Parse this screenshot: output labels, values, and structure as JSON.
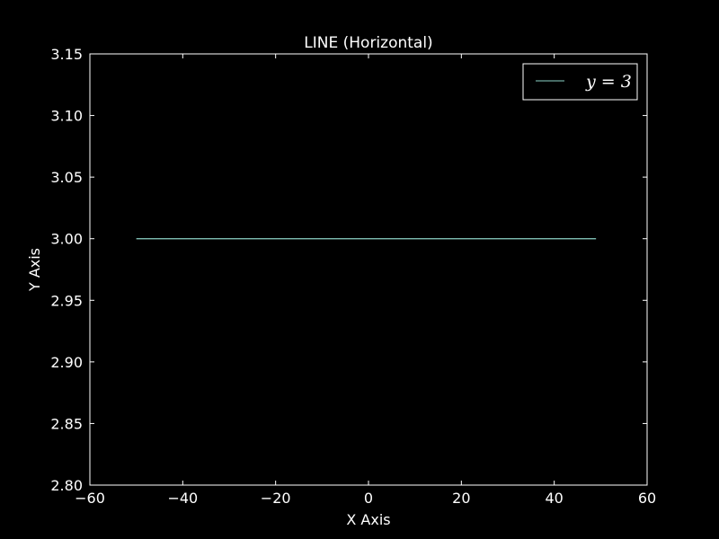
{
  "chart_data": {
    "type": "line",
    "title": "LINE (Horizontal)",
    "xlabel": "X Axis",
    "ylabel": "Y Axis",
    "xlim": [
      -60,
      60
    ],
    "ylim": [
      2.8,
      3.15
    ],
    "x_ticks": [
      -60,
      -40,
      -20,
      0,
      20,
      40,
      60
    ],
    "x_tick_labels": [
      "−60",
      "−40",
      "−20",
      "0",
      "20",
      "40",
      "60"
    ],
    "y_ticks": [
      2.8,
      2.85,
      2.9,
      2.95,
      3.0,
      3.05,
      3.1,
      3.15
    ],
    "y_tick_labels": [
      "2.80",
      "2.85",
      "2.90",
      "2.95",
      "3.00",
      "3.05",
      "3.10",
      "3.15"
    ],
    "grid": false,
    "legend_position": "top-right",
    "series": [
      {
        "name": "y = 3",
        "color": "#8dd3c7",
        "x": [
          -50,
          49
        ],
        "y": [
          3.0,
          3.0
        ]
      }
    ]
  },
  "colors": {
    "background": "#000000",
    "foreground": "#ffffff",
    "series": "#8dd3c7"
  }
}
